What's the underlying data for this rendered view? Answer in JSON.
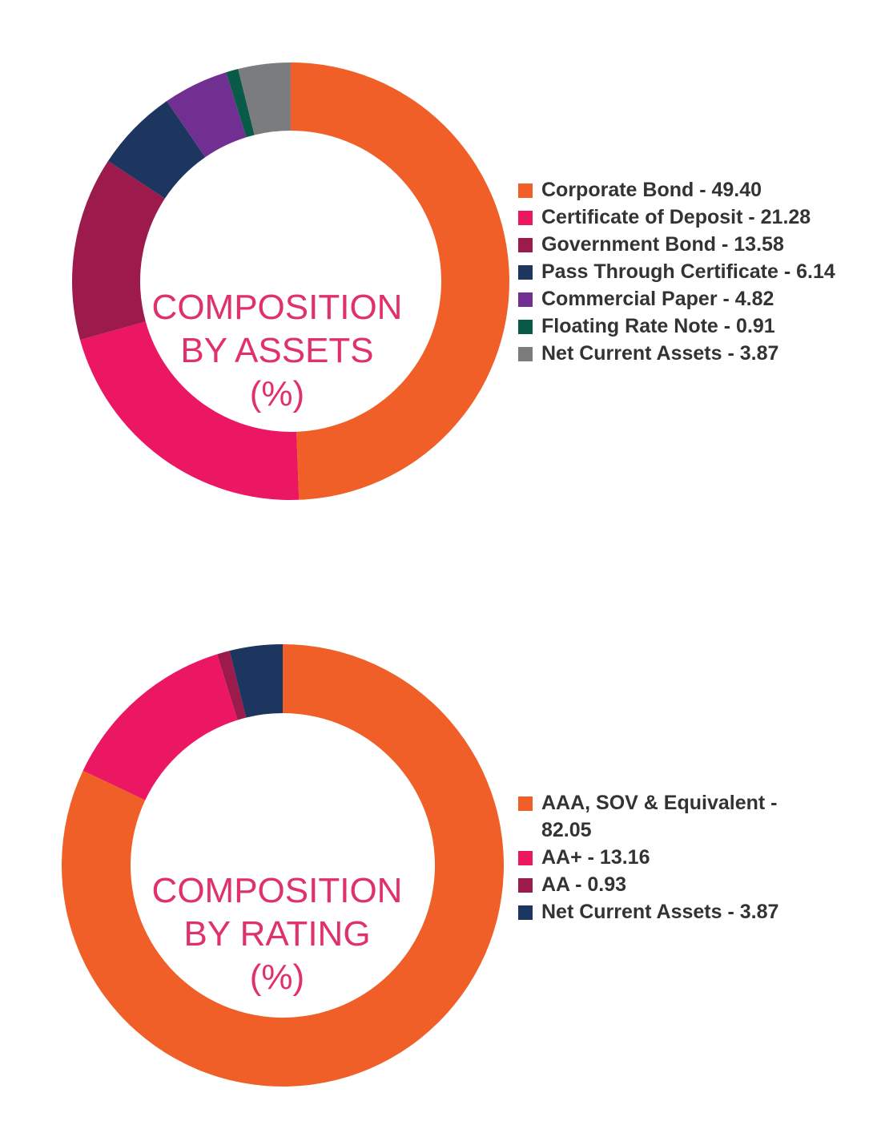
{
  "chart_data": [
    {
      "type": "pie",
      "title": "COMPOSITION BY ASSETS (%)",
      "title_lines": [
        "COMPOSITION",
        "BY ASSETS",
        "(%)"
      ],
      "legend_position": "right",
      "slices": [
        {
          "label": "Corporate Bond",
          "value": 49.4,
          "value_text": "49.40",
          "color": "#f05f28"
        },
        {
          "label": "Certificate of Deposit",
          "value": 21.28,
          "value_text": "21.28",
          "color": "#ec1763"
        },
        {
          "label": "Government Bond",
          "value": 13.58,
          "value_text": "13.58",
          "color": "#9c1a4c"
        },
        {
          "label": "Pass Through Certificate",
          "value": 6.14,
          "value_text": "6.14",
          "color": "#1c3660"
        },
        {
          "label": "Commercial Paper",
          "value": 4.82,
          "value_text": "4.82",
          "color": "#722f92"
        },
        {
          "label": "Floating Rate Note",
          "value": 0.91,
          "value_text": "0.91",
          "color": "#0a5a4a"
        },
        {
          "label": "Net Current Assets",
          "value": 3.87,
          "value_text": "3.87",
          "color": "#7b7c7e"
        }
      ]
    },
    {
      "type": "pie",
      "title": "COMPOSITION BY RATING (%)",
      "title_lines": [
        "COMPOSITION",
        "BY RATING",
        "(%)"
      ],
      "legend_position": "right",
      "slices": [
        {
          "label": "AAA, SOV & Equivalent",
          "value": 82.05,
          "value_text": "82.05",
          "color": "#f05f28"
        },
        {
          "label": "AA+",
          "value": 13.16,
          "value_text": "13.16",
          "color": "#ec1763"
        },
        {
          "label": "AA",
          "value": 0.93,
          "value_text": "0.93",
          "color": "#9c1a4c"
        },
        {
          "label": "Net Current Assets",
          "value": 3.87,
          "value_text": "3.87",
          "color": "#1c3660"
        }
      ]
    }
  ]
}
